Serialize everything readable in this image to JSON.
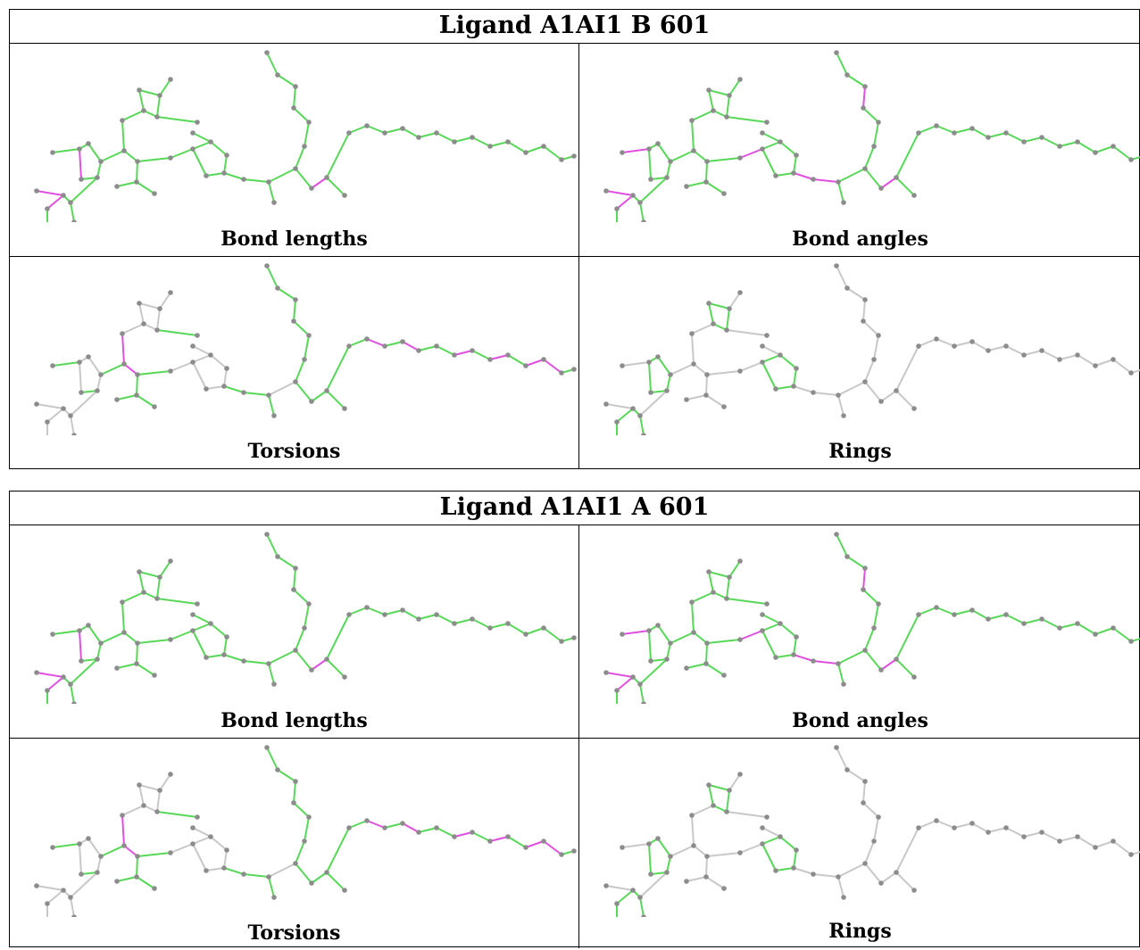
{
  "colors": {
    "ok": "#58d858",
    "outlier": "#e050e0",
    "neutral": "#c8c8c8",
    "atom": "#8c8c8c"
  },
  "tables": [
    {
      "title": "Ligand A1AI1 B 601",
      "panels": [
        {
          "caption": "Bond lengths",
          "mode": "lengths"
        },
        {
          "caption": "Bond angles",
          "mode": "angles"
        },
        {
          "caption": "Torsions",
          "mode": "torsions"
        },
        {
          "caption": "Rings",
          "mode": "rings"
        }
      ]
    },
    {
      "title": "Ligand A1AI1 A 601",
      "panels": [
        {
          "caption": "Bond lengths",
          "mode": "lengths"
        },
        {
          "caption": "Bond angles",
          "mode": "angles"
        },
        {
          "caption": "Torsions",
          "mode": "torsions"
        },
        {
          "caption": "Rings",
          "mode": "rings"
        }
      ]
    }
  ]
}
